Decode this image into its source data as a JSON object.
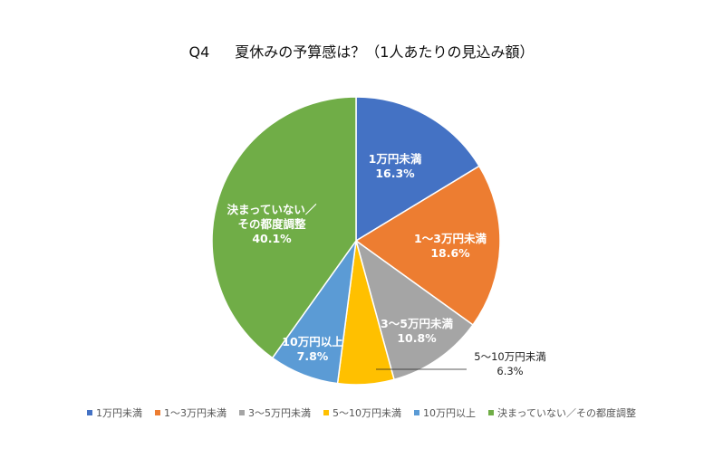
{
  "chart_data": {
    "type": "pie",
    "title_q": "Q4",
    "title": "夏休みの予算感は？（1人あたりの見込み額）",
    "categories": [
      "1万円未満",
      "1～3万円未満",
      "3～5万円未満",
      "5～10万円未満",
      "10万円以上",
      "決まっていない／その都度調整"
    ],
    "label_lines": [
      [
        "1万円未満"
      ],
      [
        "1～3万円未満"
      ],
      [
        "3～5万円未満"
      ],
      [
        "5～10万円未満"
      ],
      [
        "10万円以上"
      ],
      [
        "決まっていない／",
        "その都度調整"
      ]
    ],
    "values": [
      16.3,
      18.6,
      10.8,
      6.3,
      7.8,
      40.1
    ],
    "value_labels": [
      "16.3%",
      "18.6%",
      "10.8%",
      "6.3%",
      "7.8%",
      "40.1%"
    ],
    "colors": [
      "#4472C4",
      "#ED7D31",
      "#A5A5A5",
      "#FFC000",
      "#5B9BD5",
      "#70AD47"
    ],
    "legend_position": "bottom"
  }
}
